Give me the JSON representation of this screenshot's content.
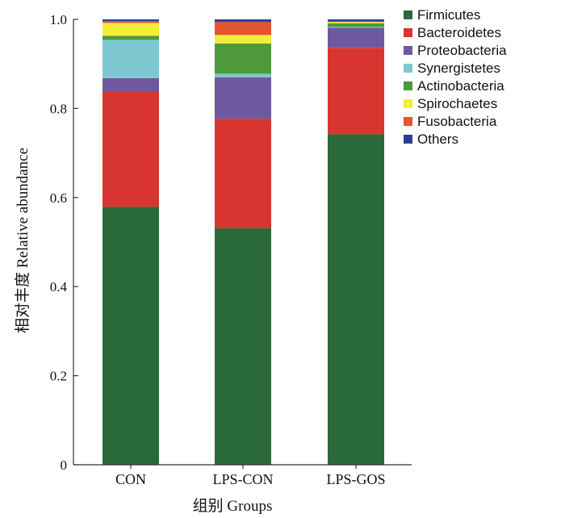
{
  "chart_data": {
    "type": "bar",
    "stacked": true,
    "categories": [
      "CON",
      "LPS-CON",
      "LPS-GOS"
    ],
    "series": [
      {
        "name": "Firmicutes",
        "color": "#2a6a3a",
        "values": [
          0.579,
          0.531,
          0.742
        ]
      },
      {
        "name": "Bacteroidetes",
        "color": "#d93530",
        "values": [
          0.258,
          0.246,
          0.194
        ]
      },
      {
        "name": "Proteobacteria",
        "color": "#7058a0",
        "values": [
          0.031,
          0.093,
          0.045
        ]
      },
      {
        "name": "Synergistetes",
        "color": "#7ec8d2",
        "values": [
          0.086,
          0.008,
          0.002
        ]
      },
      {
        "name": "Actinobacteria",
        "color": "#4e9a3a",
        "values": [
          0.009,
          0.068,
          0.008
        ]
      },
      {
        "name": "Spirochaetes",
        "color": "#f2ef3a",
        "values": [
          0.029,
          0.019,
          0.003
        ]
      },
      {
        "name": "Fusobacteria",
        "color": "#e35530",
        "values": [
          0.004,
          0.029,
          0.001
        ]
      },
      {
        "name": "Others",
        "color": "#2a3f99",
        "values": [
          0.004,
          0.006,
          0.005
        ]
      }
    ],
    "ylabel": "相对丰度  Relative abundance",
    "xlabel": "组别  Groups",
    "ylim": [
      0,
      1.0
    ],
    "yticks": [
      "0",
      "0.2",
      "0.4",
      "0.6",
      "0.8",
      "1.0"
    ],
    "grid": false,
    "legend_position": "top-right"
  }
}
